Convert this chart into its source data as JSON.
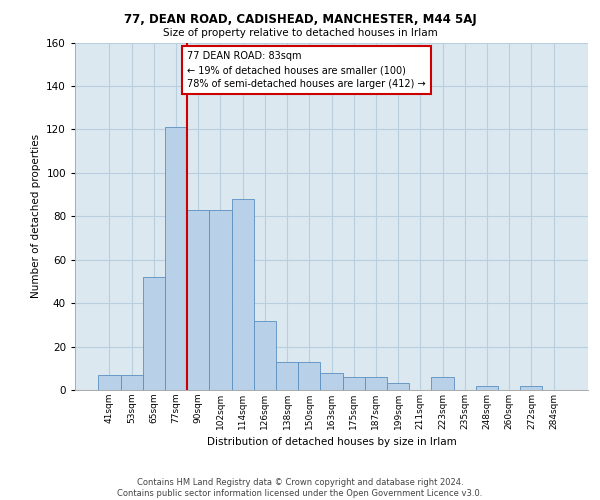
{
  "title1": "77, DEAN ROAD, CADISHEAD, MANCHESTER, M44 5AJ",
  "title2": "Size of property relative to detached houses in Irlam",
  "xlabel": "Distribution of detached houses by size in Irlam",
  "ylabel": "Number of detached properties",
  "categories": [
    "41sqm",
    "53sqm",
    "65sqm",
    "77sqm",
    "90sqm",
    "102sqm",
    "114sqm",
    "126sqm",
    "138sqm",
    "150sqm",
    "163sqm",
    "175sqm",
    "187sqm",
    "199sqm",
    "211sqm",
    "223sqm",
    "235sqm",
    "248sqm",
    "260sqm",
    "272sqm",
    "284sqm"
  ],
  "values": [
    7,
    7,
    52,
    121,
    83,
    83,
    88,
    32,
    13,
    13,
    8,
    6,
    6,
    3,
    0,
    6,
    0,
    2,
    0,
    2,
    0
  ],
  "bar_color": "#b8d0e8",
  "bar_edge_color": "#5a8fc0",
  "vline_x_idx": 3,
  "vline_color": "#cc0000",
  "annotation_text": "77 DEAN ROAD: 83sqm\n← 19% of detached houses are smaller (100)\n78% of semi-detached houses are larger (412) →",
  "annotation_box_color": "#ffffff",
  "annotation_box_edge": "#cc0000",
  "grid_color": "#b8cfe0",
  "bg_color": "#dce8f0",
  "footer": "Contains HM Land Registry data © Crown copyright and database right 2024.\nContains public sector information licensed under the Open Government Licence v3.0.",
  "ylim": [
    0,
    160
  ],
  "yticks": [
    0,
    20,
    40,
    60,
    80,
    100,
    120,
    140,
    160
  ]
}
